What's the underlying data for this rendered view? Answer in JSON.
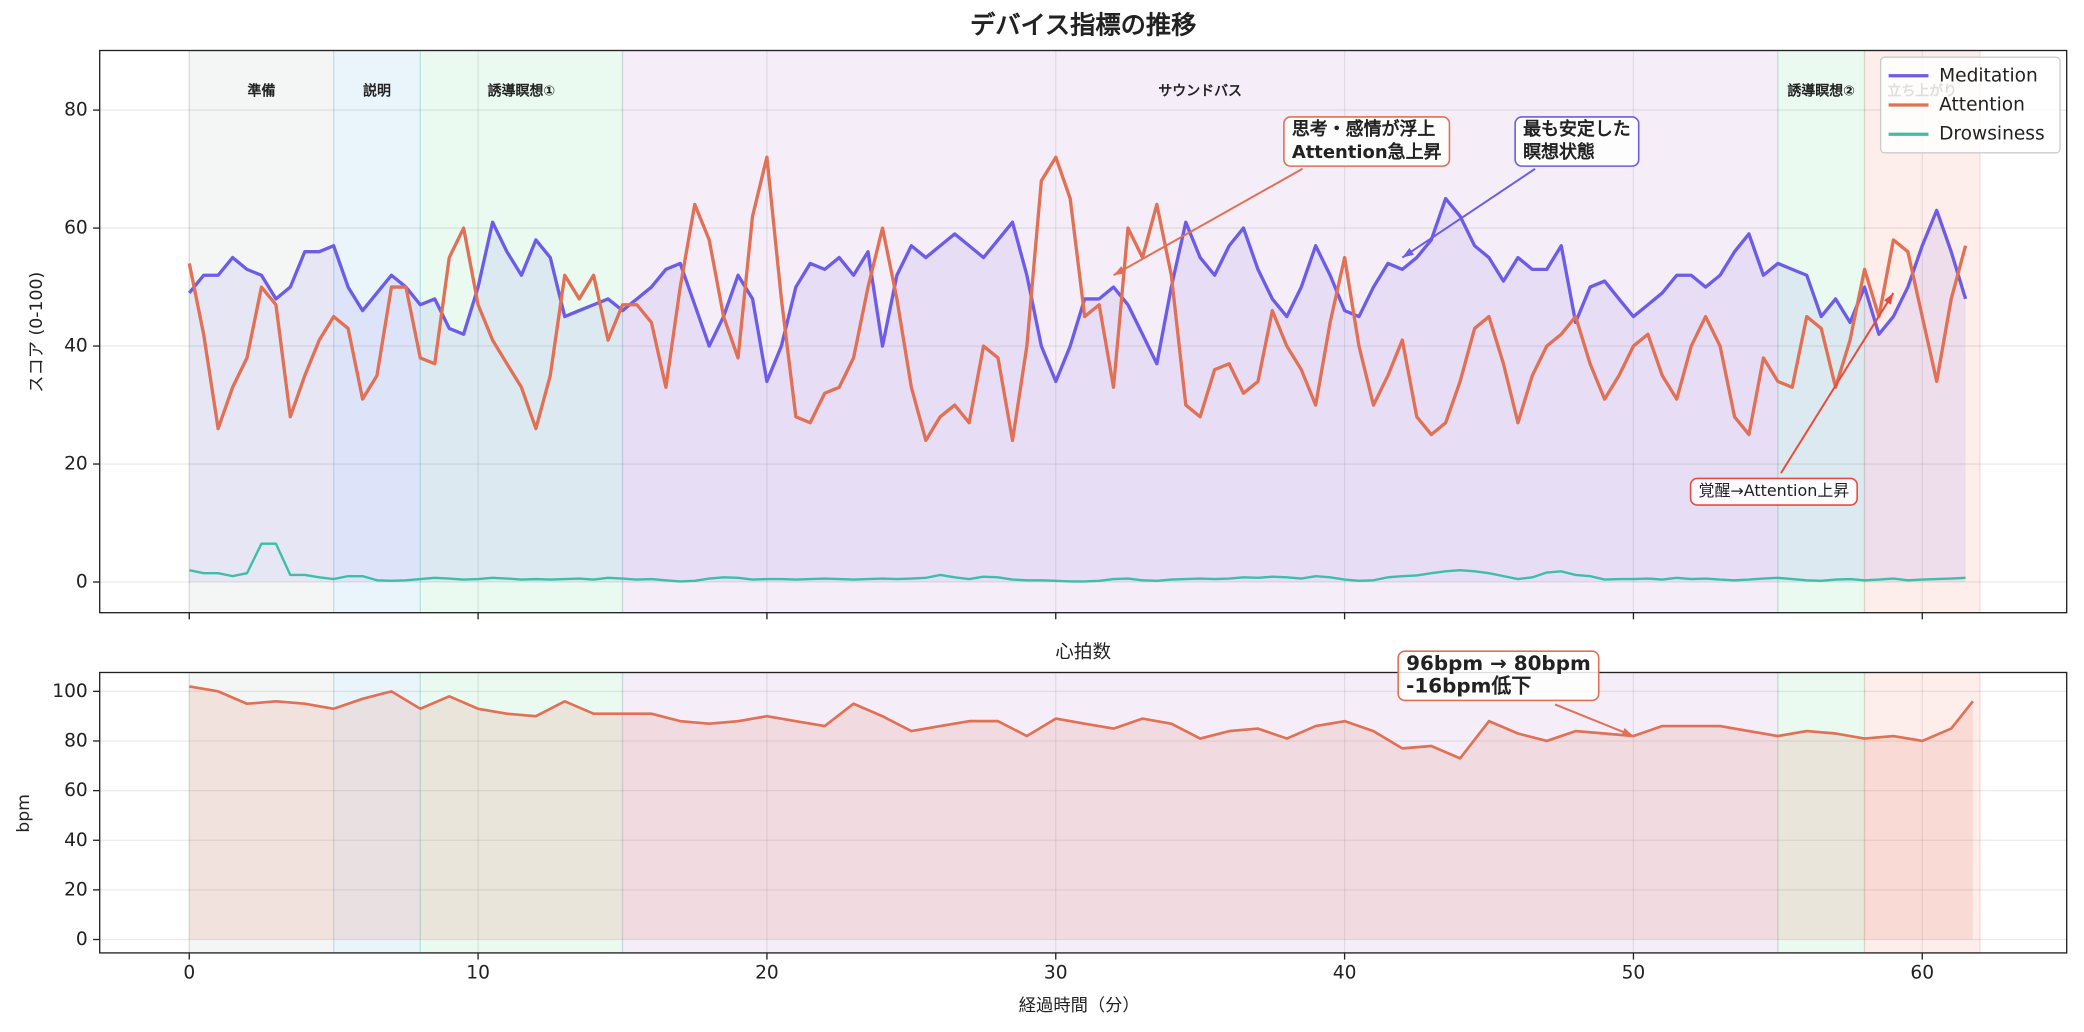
{
  "chart_data": [
    {
      "type": "line",
      "title": "デバイス指標の推移",
      "ylabel": "スコア (0-100)",
      "x": [
        0,
        0.5,
        1,
        1.5,
        2,
        2.5,
        3,
        3.5,
        4,
        4.5,
        5,
        5.5,
        6,
        6.5,
        7,
        7.5,
        8,
        8.5,
        9,
        9.5,
        10,
        10.5,
        11,
        11.5,
        12,
        12.5,
        13,
        13.5,
        14,
        14.5,
        15,
        15.5,
        16,
        16.5,
        17,
        17.5,
        18,
        18.5,
        19,
        19.5,
        20,
        20.5,
        21,
        21.5,
        22,
        22.5,
        23,
        23.5,
        24,
        24.5,
        25,
        25.5,
        26,
        26.5,
        27,
        27.5,
        28,
        28.5,
        29,
        29.5,
        30,
        30.5,
        31,
        31.5,
        32,
        32.5,
        33,
        33.5,
        34,
        34.5,
        35,
        35.5,
        36,
        36.5,
        37,
        37.5,
        38,
        38.5,
        39,
        39.5,
        40,
        40.5,
        41,
        41.5,
        42,
        42.5,
        43,
        43.5,
        44,
        44.5,
        45,
        45.5,
        46,
        46.5,
        47,
        47.5,
        48,
        48.5,
        49,
        49.5,
        50,
        50.5,
        51,
        51.5,
        52,
        52.5,
        53,
        53.5,
        54,
        54.5,
        55,
        55.5,
        56,
        56.5,
        57,
        57.5,
        58,
        58.5,
        59,
        59.5,
        60,
        60.5,
        61,
        61.5
      ],
      "series": [
        {
          "name": "Meditation",
          "color": "#6c5ce7",
          "fill": true,
          "values": [
            49,
            52,
            52,
            55,
            53,
            52,
            48,
            50,
            56,
            56,
            57,
            50,
            46,
            49,
            52,
            50,
            47,
            48,
            43,
            42,
            50,
            61,
            56,
            52,
            58,
            55,
            45,
            46,
            47,
            48,
            46,
            48,
            50,
            53,
            54,
            47,
            40,
            45,
            52,
            48,
            34,
            40,
            50,
            54,
            53,
            55,
            52,
            56,
            40,
            52,
            57,
            55,
            57,
            59,
            57,
            55,
            58,
            61,
            52,
            40,
            34,
            40,
            48,
            48,
            50,
            47,
            42,
            37,
            50,
            61,
            55,
            52,
            57,
            60,
            53,
            48,
            45,
            50,
            57,
            52,
            46,
            45,
            50,
            54,
            53,
            55,
            58,
            65,
            62,
            57,
            55,
            51,
            55,
            53,
            53,
            57,
            44,
            50,
            51,
            48,
            45,
            47,
            49,
            52,
            52,
            50,
            52,
            56,
            59,
            52,
            54,
            53,
            52,
            45,
            48,
            44,
            50,
            42,
            45,
            50,
            57,
            63,
            56,
            48
          ]
        },
        {
          "name": "Attention",
          "color": "#e17055",
          "fill": false,
          "values": [
            54,
            42,
            26,
            33,
            38,
            50,
            47,
            28,
            35,
            41,
            45,
            43,
            31,
            35,
            50,
            50,
            38,
            37,
            55,
            60,
            47,
            41,
            37,
            33,
            26,
            35,
            52,
            48,
            52,
            41,
            47,
            47,
            44,
            33,
            50,
            64,
            58,
            45,
            38,
            62,
            72,
            48,
            28,
            27,
            32,
            33,
            38,
            50,
            60,
            48,
            33,
            24,
            28,
            30,
            27,
            40,
            38,
            24,
            40,
            68,
            72,
            65,
            45,
            47,
            33,
            60,
            55,
            64,
            52,
            30,
            28,
            36,
            37,
            32,
            34,
            46,
            40,
            36,
            30,
            44,
            55,
            40,
            30,
            35,
            41,
            28,
            25,
            27,
            34,
            43,
            45,
            37,
            27,
            35,
            40,
            42,
            45,
            37,
            31,
            35,
            40,
            42,
            35,
            31,
            40,
            45,
            40,
            28,
            25,
            38,
            34,
            33,
            45,
            43,
            33,
            41,
            53,
            45,
            58,
            56,
            45,
            34,
            48,
            57
          ]
        },
        {
          "name": "Drowsiness",
          "color": "#3cbfa6",
          "fill": false,
          "values": [
            2,
            1.5,
            1.5,
            1,
            1.5,
            6.5,
            6.5,
            1.2,
            1.2,
            0.8,
            0.5,
            1,
            1,
            0.3,
            0.2,
            0.3,
            0.5,
            0.7,
            0.6,
            0.4,
            0.5,
            0.7,
            0.6,
            0.4,
            0.5,
            0.4,
            0.5,
            0.6,
            0.4,
            0.7,
            0.6,
            0.4,
            0.5,
            0.3,
            0.1,
            0.2,
            0.6,
            0.8,
            0.7,
            0.4,
            0.5,
            0.5,
            0.4,
            0.5,
            0.6,
            0.5,
            0.4,
            0.5,
            0.6,
            0.5,
            0.6,
            0.7,
            1.2,
            0.8,
            0.5,
            0.9,
            0.8,
            0.4,
            0.3,
            0.3,
            0.2,
            0.1,
            0.1,
            0.2,
            0.5,
            0.6,
            0.3,
            0.2,
            0.4,
            0.5,
            0.6,
            0.5,
            0.6,
            0.8,
            0.7,
            0.9,
            0.8,
            0.6,
            1,
            0.8,
            0.4,
            0.2,
            0.3,
            0.8,
            1,
            1.1,
            1.5,
            1.8,
            2,
            1.8,
            1.5,
            1,
            0.5,
            0.8,
            1.6,
            1.8,
            1.2,
            1,
            0.4,
            0.5,
            0.5,
            0.6,
            0.4,
            0.7,
            0.5,
            0.6,
            0.4,
            0.3,
            0.4,
            0.6,
            0.7,
            0.5,
            0.3,
            0.2,
            0.4,
            0.5,
            0.3,
            0.4,
            0.6,
            0.3,
            0.4,
            0.5,
            0.6,
            0.7
          ]
        }
      ],
      "regions": [
        {
          "label": "準備",
          "start": 0,
          "end": 5,
          "color": "#95a5a6"
        },
        {
          "label": "説明",
          "start": 5,
          "end": 8,
          "color": "#3498db"
        },
        {
          "label": "誘導瞑想①",
          "start": 8,
          "end": 15,
          "color": "#2ecc71"
        },
        {
          "label": "サウンドバス",
          "start": 15,
          "end": 55,
          "color": "#9b59b6"
        },
        {
          "label": "誘導瞑想②",
          "start": 55,
          "end": 58,
          "color": "#2ecc71"
        },
        {
          "label": "立ち上がり",
          "start": 58,
          "end": 62,
          "color": "#e74c3c"
        }
      ],
      "annotations": [
        {
          "lines": [
            "思考・感情が浮上",
            "Attention急上昇"
          ],
          "color": "#e17055"
        },
        {
          "lines": [
            "最も安定した",
            "瞑想状態"
          ],
          "color": "#6c5ce7"
        },
        {
          "lines": [
            "覚醒→Attention上昇"
          ],
          "color": "#e74c3c"
        }
      ],
      "xlim": [
        -3.1,
        65
      ],
      "xticks": [
        0,
        10,
        20,
        30,
        40,
        50,
        60
      ],
      "ylim": [
        -5.2,
        90.1
      ],
      "yticks": [
        0,
        20,
        40,
        60,
        80
      ],
      "grid": true,
      "legend": "upper right"
    },
    {
      "type": "area",
      "title": "心拍数",
      "ylabel": "bpm",
      "xlabel": "経過時間（分）",
      "color": "#e17055",
      "x": [
        0,
        1,
        2,
        3,
        4,
        5,
        6,
        7,
        8,
        9,
        10,
        11,
        12,
        13,
        14,
        15,
        16,
        17,
        18,
        19,
        20,
        21,
        22,
        23,
        24,
        25,
        26,
        27,
        28,
        29,
        30,
        31,
        32,
        33,
        34,
        35,
        36,
        37,
        38,
        39,
        40,
        41,
        42,
        43,
        44,
        45,
        46,
        47,
        48,
        49,
        50,
        51,
        52,
        53,
        54,
        55,
        56,
        57,
        58,
        59,
        60,
        61,
        61.75
      ],
      "values": [
        102,
        100,
        95,
        96,
        95,
        93,
        97,
        100,
        93,
        98,
        93,
        91,
        90,
        96,
        91,
        91,
        91,
        88,
        87,
        88,
        90,
        88,
        86,
        95,
        90,
        84,
        86,
        88,
        88,
        82,
        89,
        87,
        85,
        89,
        87,
        81,
        84,
        85,
        81,
        86,
        88,
        84,
        77,
        78,
        73,
        88,
        83,
        80,
        84,
        83,
        82,
        86,
        86,
        86,
        84,
        82,
        84,
        83,
        81,
        82,
        80,
        85,
        96
      ],
      "annotations": [
        {
          "lines": [
            "96bpm → 80bpm",
            "-16bpm低下"
          ],
          "color": "#e17055"
        }
      ],
      "xlim": [
        -3.1,
        65
      ],
      "xticks": [
        0,
        10,
        20,
        30,
        40,
        50,
        60
      ],
      "ylim": [
        -5.4,
        107.6
      ],
      "yticks": [
        0,
        20,
        40,
        60,
        80,
        100
      ],
      "grid": true
    }
  ]
}
